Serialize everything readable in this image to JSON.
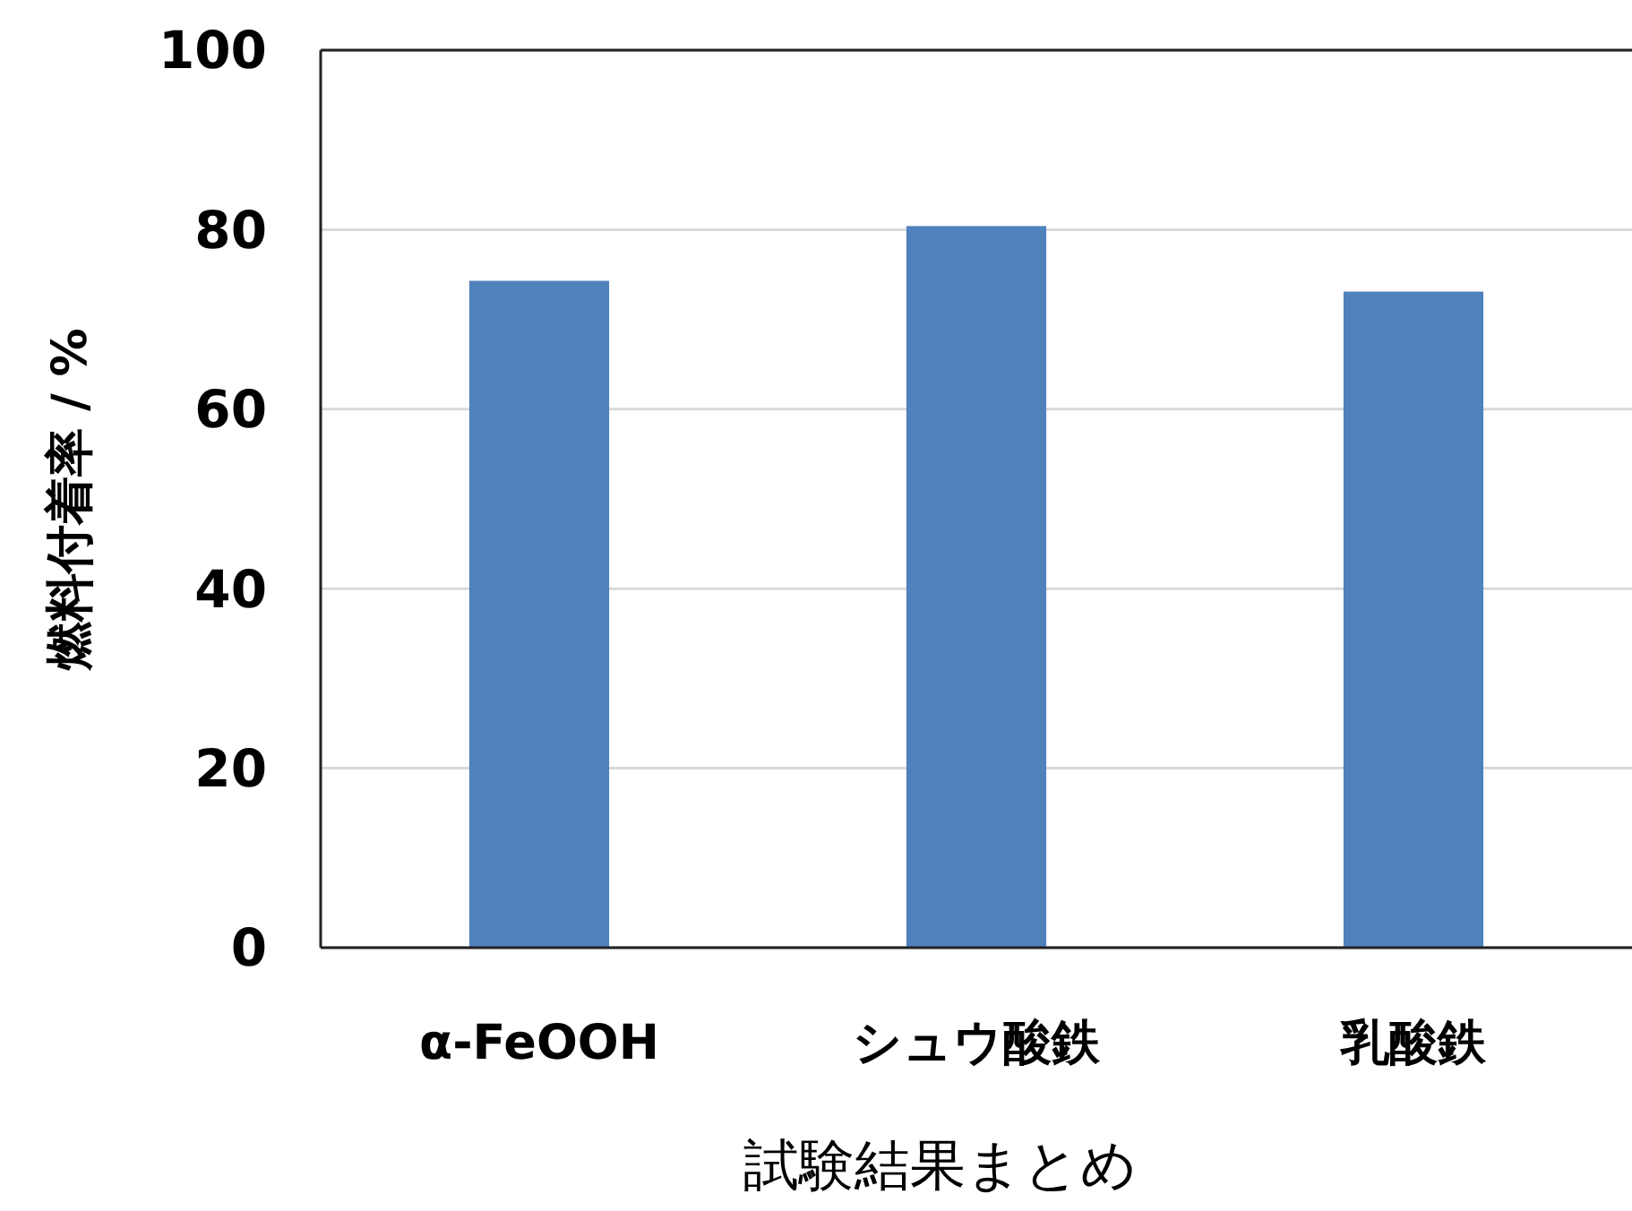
{
  "chart_data": {
    "type": "bar",
    "categories": [
      "α-FeOOH",
      "シュウ酸鉄",
      "乳酸鉄"
    ],
    "values": [
      74.3,
      80.4,
      73.1
    ],
    "color": "#4f81bd",
    "xlabel": "試験結果まとめ",
    "ylabel": "燃料付着率 / %",
    "ylim": [
      0,
      100
    ],
    "yticks": [
      0,
      20,
      40,
      60,
      80,
      100
    ],
    "grid": "y"
  }
}
